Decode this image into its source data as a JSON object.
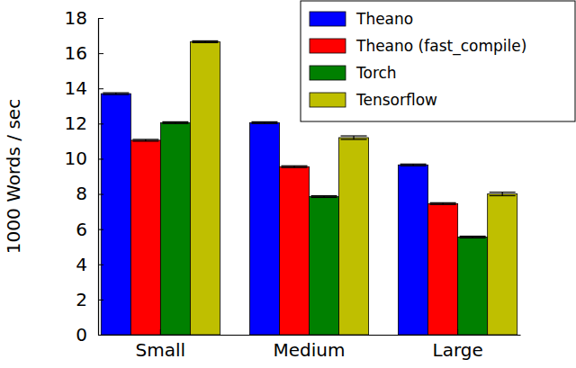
{
  "chart_data": {
    "type": "bar",
    "y_label": "1000 Words / sec",
    "categories": [
      "Small",
      "Medium",
      "Large"
    ],
    "series": [
      {
        "name": "Theano",
        "color": "#0000ff",
        "values": [
          13.7,
          12.05,
          9.65
        ],
        "errors": [
          0.05,
          0.05,
          0.05
        ]
      },
      {
        "name": "Theano (fast_compile)",
        "color": "#ff0000",
        "values": [
          11.05,
          9.55,
          7.45
        ],
        "errors": [
          0.05,
          0.05,
          0.05
        ]
      },
      {
        "name": "Torch",
        "color": "#008000",
        "values": [
          12.05,
          7.85,
          5.55
        ],
        "errors": [
          0.05,
          0.05,
          0.05
        ]
      },
      {
        "name": "Tensorflow",
        "color": "#bfbf00",
        "values": [
          16.65,
          11.2,
          8.0
        ],
        "errors": [
          0.05,
          0.1,
          0.1
        ]
      }
    ],
    "ylim": [
      0,
      18
    ],
    "yticks": [
      0,
      2,
      4,
      6,
      8,
      10,
      12,
      14,
      16,
      18
    ],
    "grid": false,
    "legend": "upper right"
  }
}
